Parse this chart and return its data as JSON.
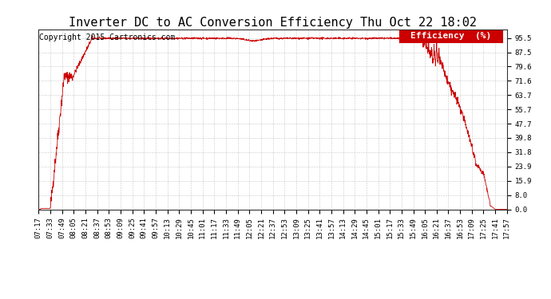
{
  "title": "Inverter DC to AC Conversion Efficiency Thu Oct 22 18:02",
  "copyright": "Copyright 2015 Cartronics.com",
  "legend_label": "Efficiency  (%)",
  "legend_bg": "#cc0000",
  "legend_fg": "#ffffff",
  "line_color": "#cc0000",
  "bg_color": "#ffffff",
  "plot_bg_color": "#ffffff",
  "grid_color": "#bbbbbb",
  "ylim": [
    0.0,
    100.0
  ],
  "yticks": [
    0.0,
    8.0,
    15.9,
    23.9,
    31.8,
    39.8,
    47.7,
    55.7,
    63.7,
    71.6,
    79.6,
    87.5,
    95.5
  ],
  "x_tick_labels": [
    "07:17",
    "07:33",
    "07:49",
    "08:05",
    "08:21",
    "08:37",
    "08:53",
    "09:09",
    "09:25",
    "09:41",
    "09:57",
    "10:13",
    "10:29",
    "10:45",
    "11:01",
    "11:17",
    "11:33",
    "11:49",
    "12:05",
    "12:21",
    "12:37",
    "12:53",
    "13:09",
    "13:25",
    "13:41",
    "13:57",
    "14:13",
    "14:29",
    "14:45",
    "15:01",
    "15:17",
    "15:33",
    "15:49",
    "16:05",
    "16:21",
    "16:37",
    "16:53",
    "17:09",
    "17:25",
    "17:41",
    "17:57"
  ],
  "title_fontsize": 11,
  "copyright_fontsize": 7,
  "tick_fontsize": 6.5,
  "legend_fontsize": 8
}
